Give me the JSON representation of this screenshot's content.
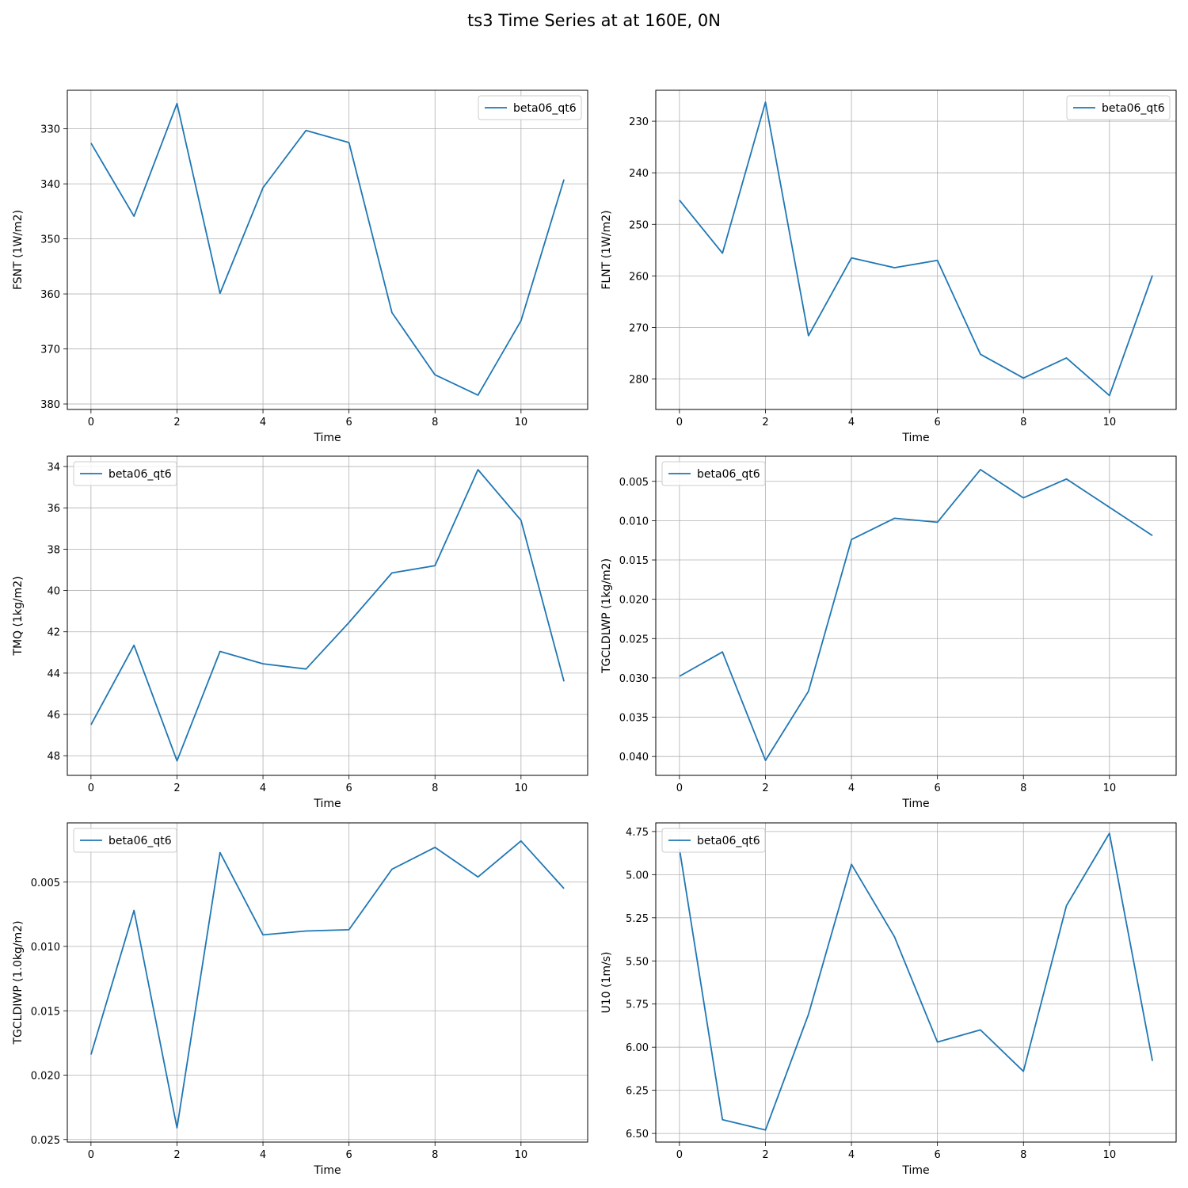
{
  "title": "ts3 Time Series at at 160E, 0N",
  "colors": {
    "line": "#1f77b4",
    "grid": "#b0b0b0",
    "axes": "#000000"
  },
  "chart_data": [
    {
      "type": "line",
      "ylabel": "FSNT (1W/m2)",
      "xlabel": "Time",
      "y_inverted": true,
      "ylim": [
        381,
        323
      ],
      "xlim": [
        -0.55,
        11.55
      ],
      "yticks": [
        330,
        340,
        350,
        360,
        370,
        380
      ],
      "ytick_labels": [
        "330",
        "340",
        "350",
        "360",
        "370",
        "380"
      ],
      "xticks": [
        0,
        2,
        4,
        6,
        8,
        10
      ],
      "xtick_labels": [
        "0",
        "2",
        "4",
        "6",
        "8",
        "10"
      ],
      "grid": true,
      "legend_position": "upper right",
      "series": [
        {
          "name": "beta06_qt6",
          "x": [
            0,
            1,
            2,
            3,
            4,
            5,
            6,
            7,
            8,
            9,
            10,
            11
          ],
          "values": [
            332.6,
            345.9,
            325.4,
            359.9,
            340.7,
            330.3,
            332.5,
            363.4,
            374.7,
            378.4,
            364.9,
            339.2
          ]
        }
      ]
    },
    {
      "type": "line",
      "ylabel": "FLNT (1W/m2)",
      "xlabel": "Time",
      "y_inverted": true,
      "ylim": [
        285.9,
        224.0
      ],
      "xlim": [
        -0.55,
        11.55
      ],
      "yticks": [
        230,
        240,
        250,
        260,
        270,
        280
      ],
      "ytick_labels": [
        "230",
        "240",
        "250",
        "260",
        "270",
        "280"
      ],
      "xticks": [
        0,
        2,
        4,
        6,
        8,
        10
      ],
      "xtick_labels": [
        "0",
        "2",
        "4",
        "6",
        "8",
        "10"
      ],
      "grid": true,
      "legend_position": "upper right",
      "series": [
        {
          "name": "beta06_qt6",
          "x": [
            0,
            1,
            2,
            3,
            4,
            5,
            6,
            7,
            8,
            9,
            10,
            11
          ],
          "values": [
            245.3,
            255.6,
            226.3,
            271.6,
            256.5,
            258.4,
            257.0,
            275.2,
            279.8,
            275.9,
            283.2,
            259.9
          ]
        }
      ]
    },
    {
      "type": "line",
      "ylabel": "TMQ (1kg/m2)",
      "xlabel": "Time",
      "y_inverted": true,
      "ylim": [
        48.95,
        33.5
      ],
      "xlim": [
        -0.55,
        11.55
      ],
      "yticks": [
        34,
        36,
        38,
        40,
        42,
        44,
        46,
        48
      ],
      "ytick_labels": [
        "34",
        "36",
        "38",
        "40",
        "42",
        "44",
        "46",
        "48"
      ],
      "xticks": [
        0,
        2,
        4,
        6,
        8,
        10
      ],
      "xtick_labels": [
        "0",
        "2",
        "4",
        "6",
        "8",
        "10"
      ],
      "grid": true,
      "legend_position": "upper left",
      "series": [
        {
          "name": "beta06_qt6",
          "x": [
            0,
            1,
            2,
            3,
            4,
            5,
            6,
            7,
            8,
            9,
            10,
            11
          ],
          "values": [
            46.5,
            42.65,
            48.25,
            42.95,
            43.55,
            43.8,
            41.55,
            39.15,
            38.8,
            34.15,
            36.6,
            44.4
          ]
        }
      ]
    },
    {
      "type": "line",
      "ylabel": "TGCLDLWP (1kg/m2)",
      "xlabel": "Time",
      "y_inverted": true,
      "ylim": [
        0.0424,
        0.0018
      ],
      "xlim": [
        -0.55,
        11.55
      ],
      "yticks": [
        0.005,
        0.01,
        0.015,
        0.02,
        0.025,
        0.03,
        0.035,
        0.04
      ],
      "ytick_labels": [
        "0.005",
        "0.010",
        "0.015",
        "0.020",
        "0.025",
        "0.030",
        "0.035",
        "0.040"
      ],
      "xticks": [
        0,
        2,
        4,
        6,
        8,
        10
      ],
      "xtick_labels": [
        "0",
        "2",
        "4",
        "6",
        "8",
        "10"
      ],
      "grid": true,
      "legend_position": "upper left",
      "series": [
        {
          "name": "beta06_qt6",
          "x": [
            0,
            1,
            2,
            3,
            4,
            5,
            6,
            7,
            8,
            9,
            10,
            11
          ],
          "values": [
            0.0298,
            0.0267,
            0.0405,
            0.0317,
            0.0124,
            0.0097,
            0.0102,
            0.0035,
            0.0071,
            0.0047,
            0.0083,
            0.0119
          ]
        }
      ]
    },
    {
      "type": "line",
      "ylabel": "TGCLDIWP (1.0kg/m2)",
      "xlabel": "Time",
      "y_inverted": true,
      "ylim": [
        0.0252,
        0.0004
      ],
      "xlim": [
        -0.55,
        11.55
      ],
      "yticks": [
        0.005,
        0.01,
        0.015,
        0.02,
        0.025
      ],
      "ytick_labels": [
        "0.005",
        "0.010",
        "0.015",
        "0.020",
        "0.025"
      ],
      "xticks": [
        0,
        2,
        4,
        6,
        8,
        10
      ],
      "xtick_labels": [
        "0",
        "2",
        "4",
        "6",
        "8",
        "10"
      ],
      "grid": true,
      "legend_position": "upper left",
      "series": [
        {
          "name": "beta06_qt6",
          "x": [
            0,
            1,
            2,
            3,
            4,
            5,
            6,
            7,
            8,
            9,
            10,
            11
          ],
          "values": [
            0.0184,
            0.0072,
            0.0241,
            0.0027,
            0.0091,
            0.0088,
            0.0087,
            0.004,
            0.0023,
            0.0046,
            0.0018,
            0.0055
          ]
        }
      ]
    },
    {
      "type": "line",
      "ylabel": "U10 (1m/s)",
      "xlabel": "Time",
      "y_inverted": true,
      "ylim": [
        6.55,
        4.7
      ],
      "xlim": [
        -0.55,
        11.55
      ],
      "yticks": [
        4.75,
        5.0,
        5.25,
        5.5,
        5.75,
        6.0,
        6.25,
        6.5
      ],
      "ytick_labels": [
        "4.75",
        "5.00",
        "5.25",
        "5.50",
        "5.75",
        "6.00",
        "6.25",
        "6.50"
      ],
      "xticks": [
        0,
        2,
        4,
        6,
        8,
        10
      ],
      "xtick_labels": [
        "0",
        "2",
        "4",
        "6",
        "8",
        "10"
      ],
      "grid": true,
      "legend_position": "upper left",
      "series": [
        {
          "name": "beta06_qt6",
          "x": [
            0,
            1,
            2,
            3,
            4,
            5,
            6,
            7,
            8,
            9,
            10,
            11
          ],
          "values": [
            4.85,
            6.42,
            6.48,
            5.81,
            4.94,
            5.36,
            5.97,
            5.9,
            6.14,
            5.18,
            4.76,
            6.08
          ]
        }
      ]
    }
  ]
}
